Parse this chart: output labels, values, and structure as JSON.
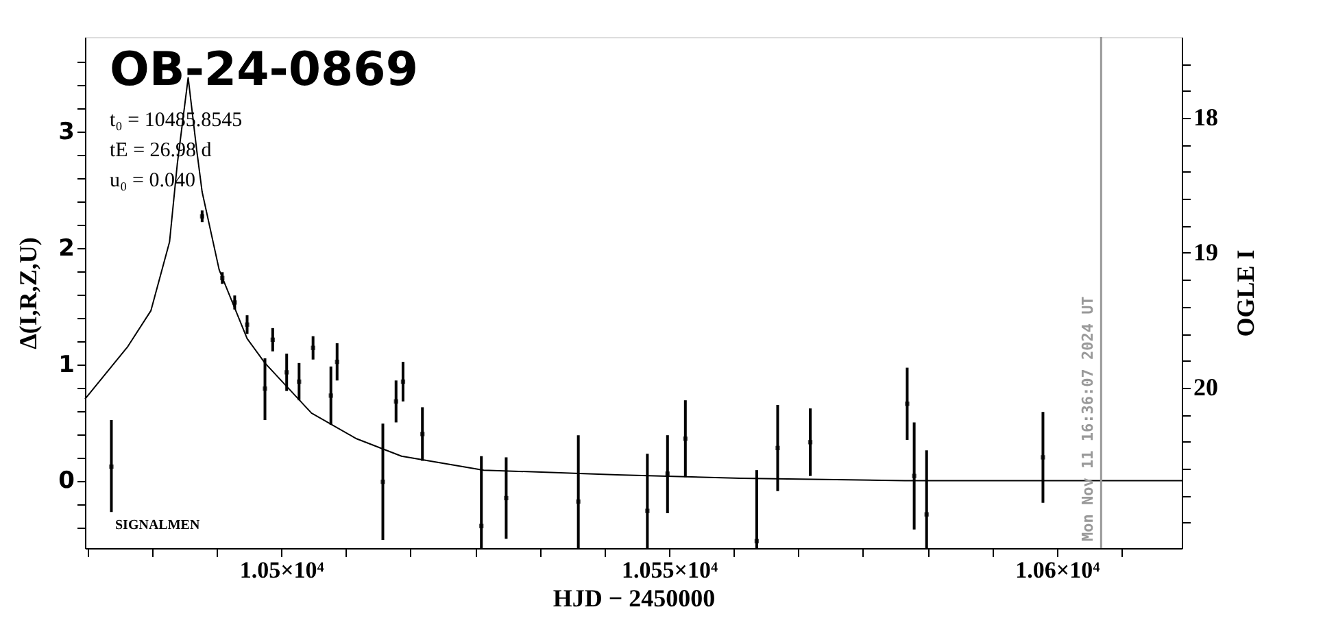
{
  "chart_data": {
    "type": "scatter",
    "title": "OB-24-0869",
    "xlabel": "HJD − 2450000",
    "ylabel": "Δ(I,R,Z,U)",
    "y2label": "OGLE I",
    "annotations": [
      "t₀ = 10485.8545",
      "tE = 26.98 d",
      "u₀ = 0.040",
      "Mon Nov 11 16:36:07 2024 UT",
      "SIGNALMEN"
    ],
    "xlim": [
      10474.7,
      10616.1
    ],
    "ylim": [
      -0.58,
      3.81
    ],
    "y2lim": [
      21.19,
      17.4
    ],
    "xticks": [
      {
        "value": 10475,
        "label": null
      },
      {
        "value": 10483.33,
        "label": null
      },
      {
        "value": 10491.67,
        "label": null
      },
      {
        "value": 10500,
        "label": "1.05×10⁴"
      },
      {
        "value": 10508.33,
        "label": null
      },
      {
        "value": 10516.67,
        "label": null
      },
      {
        "value": 10525,
        "label": null
      },
      {
        "value": 10533.33,
        "label": null
      },
      {
        "value": 10541.67,
        "label": null
      },
      {
        "value": 10550,
        "label": "1.055×10⁴"
      },
      {
        "value": 10558.33,
        "label": null
      },
      {
        "value": 10566.67,
        "label": null
      },
      {
        "value": 10575,
        "label": null
      },
      {
        "value": 10583.33,
        "label": null
      },
      {
        "value": 10591.67,
        "label": null
      },
      {
        "value": 10600,
        "label": "1.06×10⁴"
      },
      {
        "value": 10608.33,
        "label": null
      }
    ],
    "yticks": [
      {
        "value": -0.4,
        "label": null
      },
      {
        "value": -0.2,
        "label": null
      },
      0,
      {
        "value": 0.2,
        "label": null
      },
      {
        "value": 0.4,
        "label": null
      },
      {
        "value": 0.6,
        "label": null
      },
      {
        "value": 0.8,
        "label": null
      },
      1,
      {
        "value": 1.2,
        "label": null
      },
      {
        "value": 1.4,
        "label": null
      },
      {
        "value": 1.6,
        "label": null
      },
      {
        "value": 1.8,
        "label": null
      },
      2,
      {
        "value": 2.2,
        "label": null
      },
      {
        "value": 2.4,
        "label": null
      },
      {
        "value": 2.6,
        "label": null
      },
      {
        "value": 2.8,
        "label": null
      },
      3,
      {
        "value": 3.2,
        "label": null
      },
      {
        "value": 3.4,
        "label": null
      },
      {
        "value": 3.6,
        "label": null
      }
    ],
    "y2ticks": [
      {
        "value": 17.6,
        "label": null
      },
      {
        "value": 17.8,
        "label": null
      },
      18,
      {
        "value": 18.2,
        "label": null
      },
      {
        "value": 18.4,
        "label": null
      },
      {
        "value": 18.6,
        "label": null
      },
      {
        "value": 18.8,
        "label": null
      },
      19,
      {
        "value": 19.2,
        "label": null
      },
      {
        "value": 19.4,
        "label": null
      },
      {
        "value": 19.6,
        "label": null
      },
      {
        "value": 19.8,
        "label": null
      },
      20,
      {
        "value": 20.2,
        "label": null
      },
      {
        "value": 20.4,
        "label": null
      },
      {
        "value": 20.6,
        "label": null
      },
      {
        "value": 20.8,
        "label": null
      },
      {
        "value": 21.0,
        "label": null
      }
    ],
    "grid": false,
    "ref_lines": [
      {
        "axis": "x",
        "value": 10605.7,
        "color": "#999999"
      }
    ],
    "series": [
      {
        "color": "#000000",
        "marker": "square",
        "x": [
          10478.1,
          10489.8,
          10492.4,
          10494.0,
          10495.6,
          10497.9,
          10498.9,
          10500.7,
          10502.3,
          10504.1,
          10506.4,
          10507.2,
          10513.1,
          10514.8,
          10515.7,
          10518.2,
          10525.8,
          10529.0,
          10538.3,
          10547.2,
          10549.8,
          10552.1,
          10561.3,
          10564.0,
          10568.2,
          10580.7,
          10581.6,
          10583.2,
          10598.2
        ],
        "values": [
          0.12,
          2.27,
          1.74,
          1.53,
          1.34,
          0.79,
          1.21,
          0.93,
          0.85,
          1.14,
          0.73,
          1.02,
          -0.01,
          0.68,
          0.85,
          0.4,
          -0.39,
          -0.15,
          -0.18,
          -0.26,
          0.06,
          0.36,
          -0.52,
          0.28,
          0.33,
          0.66,
          0.04,
          -0.29,
          0.2
        ],
        "errors": [
          [
            -0.27,
            0.52
          ],
          [
            2.22,
            2.32
          ],
          [
            1.69,
            1.79
          ],
          [
            1.47,
            1.59
          ],
          [
            1.26,
            1.42
          ],
          [
            0.52,
            1.05
          ],
          [
            1.11,
            1.31
          ],
          [
            0.77,
            1.09
          ],
          [
            0.69,
            1.01
          ],
          [
            1.04,
            1.24
          ],
          [
            0.48,
            0.98
          ],
          [
            0.86,
            1.18
          ],
          [
            -0.51,
            0.49
          ],
          [
            0.5,
            0.86
          ],
          [
            0.68,
            1.02
          ],
          [
            0.17,
            0.63
          ],
          [
            -0.58,
            0.21
          ],
          [
            -0.5,
            0.2
          ],
          [
            -0.58,
            0.39
          ],
          [
            -0.58,
            0.23
          ],
          [
            -0.28,
            0.39
          ],
          [
            0.03,
            0.69
          ],
          [
            -0.58,
            0.09
          ],
          [
            -0.09,
            0.65
          ],
          [
            0.04,
            0.62
          ],
          [
            0.35,
            0.97
          ],
          [
            -0.42,
            0.5
          ],
          [
            -0.58,
            0.26
          ],
          [
            -0.19,
            0.59
          ]
        ]
      },
      {
        "type": "line",
        "color": "#000000",
        "line_style": "solid",
        "x": [
          10474.7,
          10480.2,
          10483.2,
          10485.6,
          10486.6,
          10488.0,
          10489.1,
          10489.8,
          10492.0,
          10495.6,
          10497.9,
          10503.9,
          10509.7,
          10515.5,
          10526.1,
          10543.3,
          10559.2,
          10580.4,
          10616.1
        ],
        "values": [
          0.7,
          1.15,
          1.46,
          2.05,
          2.72,
          3.46,
          2.84,
          2.48,
          1.81,
          1.22,
          1.01,
          0.58,
          0.36,
          0.21,
          0.09,
          0.05,
          0.02,
          0.0,
          0.0
        ]
      }
    ]
  }
}
